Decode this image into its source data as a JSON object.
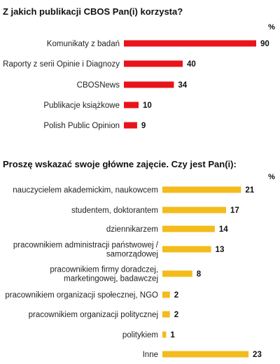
{
  "chart_data": [
    {
      "type": "bar",
      "orientation": "horizontal",
      "title": "Z jakich publikacji CBOS Pan(i) korzysta?",
      "unit": "%",
      "color": "#e8141b",
      "categories": [
        "Komunikaty z badań",
        "Raporty z serii Opinie i Diagnozy",
        "CBOSNews",
        "Publikacje książkowe",
        "Polish Public Opinion"
      ],
      "values": [
        90,
        40,
        34,
        10,
        9
      ],
      "value_labels": [
        "90",
        "40",
        "34",
        "10",
        "9"
      ],
      "xlim": [
        0,
        100
      ],
      "grid": false,
      "legend": "none"
    },
    {
      "type": "bar",
      "orientation": "horizontal",
      "title": "Proszę wskazać swoje główne zajęcie. Czy jest Pan(i):",
      "unit": "%",
      "color": "#f3bb1b",
      "categories": [
        "nauczycielem akademickim, naukowcem",
        "studentem, doktorantem",
        "dziennikarzem",
        "pracownikiem administracji państwowej / samorządowej",
        "pracownikiem firmy doradczej, marketingowej, badawczej",
        "pracownikiem organizacji społecznej, NGO",
        "pracownikiem organizacji politycznej",
        "politykiem",
        "Inne"
      ],
      "category_lines": [
        [
          "nauczycielem akademickim, naukowcem"
        ],
        [
          "studentem, doktorantem"
        ],
        [
          "dziennikarzem"
        ],
        [
          "pracownikiem administracji państwowej /",
          "samorządowej"
        ],
        [
          "pracownikiem firmy doradczej,",
          "marketingowej, badawczej"
        ],
        [
          "pracownikiem organizacji społecznej, NGO"
        ],
        [
          "pracownikiem organizacji politycznej"
        ],
        [
          "politykiem"
        ],
        [
          "Inne"
        ]
      ],
      "values": [
        21,
        17,
        14,
        13,
        8,
        2,
        2,
        1,
        23
      ],
      "value_labels": [
        "21",
        "17",
        "14",
        "13",
        "8",
        "2",
        "2",
        "1",
        "23"
      ],
      "xlim": [
        0,
        25
      ],
      "grid": false,
      "legend": "none"
    }
  ]
}
